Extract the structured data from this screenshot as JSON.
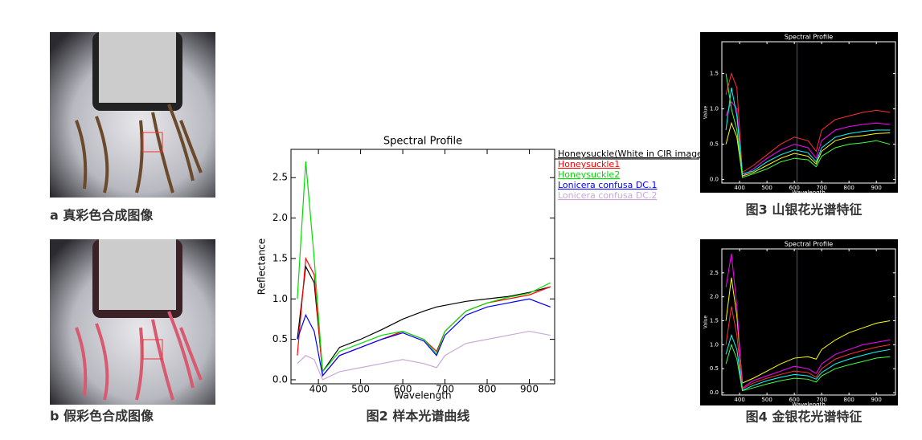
{
  "photos": [
    {
      "caption": "a 真彩色合成图像"
    },
    {
      "caption": "b 假彩色合成图像"
    }
  ],
  "chart_data": [
    {
      "type": "line",
      "title": "Spectral Profile",
      "caption": "图2 样本光谱曲线",
      "x_label": "Wavelength",
      "y_label": "Reflectance",
      "x": [
        350,
        370,
        390,
        410,
        450,
        500,
        550,
        600,
        650,
        680,
        700,
        750,
        800,
        850,
        900,
        950
      ],
      "xlim": [
        335,
        960
      ],
      "ylim": [
        -0.05,
        2.85
      ],
      "xticks": [
        400,
        500,
        600,
        700,
        800,
        900
      ],
      "yticks": [
        {
          "value": 0,
          "label": "0.0"
        },
        {
          "value": 0.5,
          "label": "0.5"
        },
        {
          "value": 1,
          "label": "1.0"
        },
        {
          "value": 1.5,
          "label": "1.5"
        },
        {
          "value": 2,
          "label": "2.0"
        },
        {
          "value": 2.5,
          "label": "2.5"
        }
      ],
      "grid": false,
      "series": [
        {
          "name": "Honeysuckle(White in CIR image)",
          "color": "#000000",
          "values": [
            0.5,
            1.4,
            1.2,
            0.1,
            0.4,
            0.5,
            0.62,
            0.75,
            0.85,
            0.9,
            0.92,
            0.97,
            1.0,
            1.03,
            1.08,
            1.15
          ]
        },
        {
          "name": "Honeysuckle1",
          "color": "#ff0000",
          "values": [
            0.3,
            1.5,
            1.3,
            0.05,
            0.3,
            0.4,
            0.5,
            0.6,
            0.5,
            0.35,
            0.6,
            0.85,
            0.95,
            1.0,
            1.05,
            1.15
          ]
        },
        {
          "name": "Honeysuckle2",
          "color": "#00dd00",
          "values": [
            1.0,
            2.7,
            1.5,
            0.1,
            0.35,
            0.45,
            0.55,
            0.6,
            0.5,
            0.32,
            0.6,
            0.85,
            0.95,
            1.02,
            1.07,
            1.2
          ]
        },
        {
          "name": "Lonicera confusa DC.1",
          "color": "#0000ff",
          "values": [
            0.5,
            0.8,
            0.6,
            0.05,
            0.3,
            0.4,
            0.5,
            0.58,
            0.48,
            0.3,
            0.55,
            0.8,
            0.9,
            0.95,
            1.0,
            0.9
          ]
        },
        {
          "name": "Lonicera confusa DC.2",
          "color": "#c8a8d8",
          "values": [
            0.2,
            0.3,
            0.25,
            0.0,
            0.1,
            0.15,
            0.2,
            0.25,
            0.2,
            0.15,
            0.3,
            0.45,
            0.5,
            0.55,
            0.6,
            0.55
          ]
        }
      ]
    },
    {
      "type": "line",
      "title": "Spectral Profile",
      "caption": "图3 山银花光谱特征",
      "x_label": "Wavelength",
      "y_label": "Value",
      "x": [
        350,
        370,
        390,
        410,
        450,
        500,
        550,
        600,
        650,
        680,
        700,
        750,
        800,
        850,
        900,
        950
      ],
      "xlim": [
        335,
        970
      ],
      "ylim": [
        -0.05,
        1.95
      ],
      "xticks": [
        400,
        500,
        600,
        700,
        800,
        900
      ],
      "yticks": [
        {
          "value": 0,
          "label": "0.0"
        },
        {
          "value": 0.5,
          "label": "0.5"
        },
        {
          "value": 1,
          "label": "1.0"
        },
        {
          "value": 1.5,
          "label": "1.5"
        }
      ],
      "grid": false,
      "series": [
        {
          "color": "#ff3030",
          "values": [
            1.2,
            1.5,
            1.3,
            0.1,
            0.2,
            0.35,
            0.5,
            0.6,
            0.55,
            0.4,
            0.7,
            0.85,
            0.9,
            0.95,
            0.98,
            0.95
          ]
        },
        {
          "color": "#ff00ff",
          "values": [
            0.9,
            1.1,
            1.0,
            0.05,
            0.15,
            0.3,
            0.42,
            0.5,
            0.45,
            0.3,
            0.55,
            0.7,
            0.75,
            0.78,
            0.8,
            0.78
          ]
        },
        {
          "color": "#00ffff",
          "values": [
            0.7,
            1.3,
            0.9,
            0.08,
            0.12,
            0.25,
            0.35,
            0.42,
            0.38,
            0.25,
            0.45,
            0.6,
            0.65,
            0.68,
            0.7,
            0.7
          ]
        },
        {
          "color": "#ffff00",
          "values": [
            0.5,
            0.8,
            0.6,
            0.05,
            0.1,
            0.2,
            0.3,
            0.37,
            0.33,
            0.22,
            0.4,
            0.55,
            0.6,
            0.62,
            0.65,
            0.66
          ]
        },
        {
          "color": "#40ff40",
          "values": [
            1.5,
            1.0,
            0.7,
            0.03,
            0.08,
            0.15,
            0.25,
            0.3,
            0.28,
            0.18,
            0.33,
            0.45,
            0.5,
            0.52,
            0.55,
            0.5
          ]
        }
      ]
    },
    {
      "type": "line",
      "title": "Spectral Profile",
      "caption": "图4 金银花光谱特征",
      "x_label": "Wavelength",
      "y_label": "Value",
      "x": [
        350,
        370,
        390,
        410,
        450,
        500,
        550,
        600,
        650,
        680,
        700,
        750,
        800,
        850,
        900,
        950
      ],
      "xlim": [
        335,
        970
      ],
      "ylim": [
        -0.05,
        3.0
      ],
      "xticks": [
        400,
        500,
        600,
        700,
        800,
        900
      ],
      "yticks": [
        {
          "value": 0,
          "label": "0.0"
        },
        {
          "value": 0.5,
          "label": "0.5"
        },
        {
          "value": 1,
          "label": "1.0"
        },
        {
          "value": 1.5,
          "label": "1.5"
        },
        {
          "value": 2,
          "label": "2.0"
        },
        {
          "value": 2.5,
          "label": "2.5"
        }
      ],
      "grid": false,
      "series": [
        {
          "color": "#ffff00",
          "values": [
            1.5,
            2.4,
            1.6,
            0.2,
            0.3,
            0.45,
            0.6,
            0.72,
            0.75,
            0.7,
            0.9,
            1.1,
            1.25,
            1.35,
            1.45,
            1.5
          ]
        },
        {
          "color": "#ff00ff",
          "values": [
            2.2,
            2.9,
            1.8,
            0.1,
            0.25,
            0.35,
            0.45,
            0.55,
            0.5,
            0.4,
            0.6,
            0.8,
            0.9,
            1.0,
            1.05,
            1.1
          ]
        },
        {
          "color": "#ff3030",
          "values": [
            1.0,
            1.8,
            1.2,
            0.08,
            0.2,
            0.3,
            0.38,
            0.45,
            0.42,
            0.32,
            0.5,
            0.7,
            0.8,
            0.88,
            0.95,
            1.0
          ]
        },
        {
          "color": "#00ffff",
          "values": [
            0.8,
            1.2,
            0.9,
            0.05,
            0.15,
            0.25,
            0.32,
            0.38,
            0.35,
            0.28,
            0.42,
            0.6,
            0.7,
            0.78,
            0.85,
            0.9
          ]
        },
        {
          "color": "#40ff40",
          "values": [
            0.6,
            1.0,
            0.7,
            0.04,
            0.1,
            0.18,
            0.25,
            0.3,
            0.28,
            0.22,
            0.35,
            0.5,
            0.58,
            0.65,
            0.72,
            0.75
          ]
        }
      ]
    }
  ]
}
